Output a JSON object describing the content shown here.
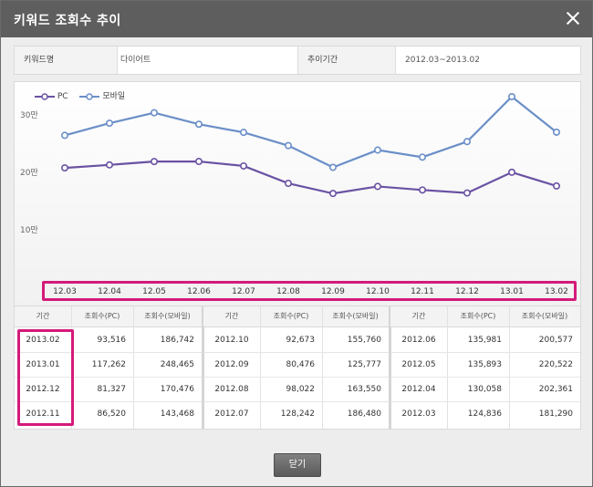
{
  "dialog": {
    "title": "키워드 조회수 추이",
    "close_label": "×",
    "button_label": "닫기"
  },
  "info": {
    "keyword_label": "키워드명",
    "keyword_value": "다이어트",
    "period_label": "추이기간",
    "period_value": "2012.03~2013.02"
  },
  "chart_data": {
    "type": "line",
    "categories": [
      "12.03",
      "12.04",
      "12.05",
      "12.06",
      "12.07",
      "12.08",
      "12.09",
      "12.10",
      "12.11",
      "12.12",
      "13.01",
      "13.02"
    ],
    "series": [
      {
        "name": "PC",
        "color": "#6a52a3",
        "values": [
          124836,
          130058,
          135893,
          135981,
          128242,
          98022,
          80476,
          92673,
          86520,
          81327,
          117262,
          93516
        ]
      },
      {
        "name": "모바일",
        "color": "#6b8fc8",
        "values": [
          181290,
          202361,
          220522,
          200577,
          186480,
          163550,
          125777,
          155760,
          143468,
          170476,
          248465,
          186742
        ]
      }
    ],
    "y_ticks": [
      "30만",
      "20만",
      "10만"
    ],
    "ylim": [
      0,
      300000
    ],
    "legend_position": "top-left",
    "grid": false
  },
  "table": {
    "headers": {
      "period": "기간",
      "pc": "조회수(PC)",
      "mobile": "조회수(모바일)"
    },
    "groups": [
      [
        [
          "2013.02",
          "93,516",
          "186,742"
        ],
        [
          "2013.01",
          "117,262",
          "248,465"
        ],
        [
          "2012.12",
          "81,327",
          "170,476"
        ],
        [
          "2012.11",
          "86,520",
          "143,468"
        ]
      ],
      [
        [
          "2012.10",
          "92,673",
          "155,760"
        ],
        [
          "2012.09",
          "80,476",
          "125,777"
        ],
        [
          "2012.08",
          "98,022",
          "163,550"
        ],
        [
          "2012.07",
          "128,242",
          "186,480"
        ]
      ],
      [
        [
          "2012.06",
          "135,981",
          "200,577"
        ],
        [
          "2012.05",
          "135,893",
          "220,522"
        ],
        [
          "2012.04",
          "130,058",
          "202,361"
        ],
        [
          "2012.03",
          "124,836",
          "181,290"
        ]
      ]
    ]
  },
  "highlight_color": "#d41a7a"
}
